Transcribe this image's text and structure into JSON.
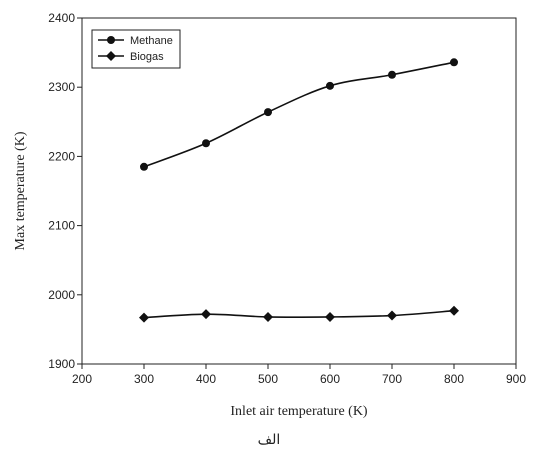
{
  "chart_data": {
    "type": "line",
    "xlabel": "Inlet air temperature (K)",
    "ylabel": "Max temperature (K)",
    "xlim": [
      200,
      900
    ],
    "ylim": [
      1900,
      2400
    ],
    "xticks": [
      200,
      300,
      400,
      500,
      600,
      700,
      800,
      900
    ],
    "yticks": [
      1900,
      2000,
      2100,
      2200,
      2300,
      2400
    ],
    "grid": false,
    "legend_position": "top-left",
    "x": [
      300,
      400,
      500,
      600,
      700,
      800
    ],
    "series": [
      {
        "name": "Methane",
        "marker": "circle",
        "values": [
          2185,
          2219,
          2264,
          2302,
          2318,
          2336
        ]
      },
      {
        "name": "Biogas",
        "marker": "diamond",
        "values": [
          1967,
          1972,
          1968,
          1968,
          1970,
          1977
        ]
      }
    ]
  },
  "caption": "الف"
}
